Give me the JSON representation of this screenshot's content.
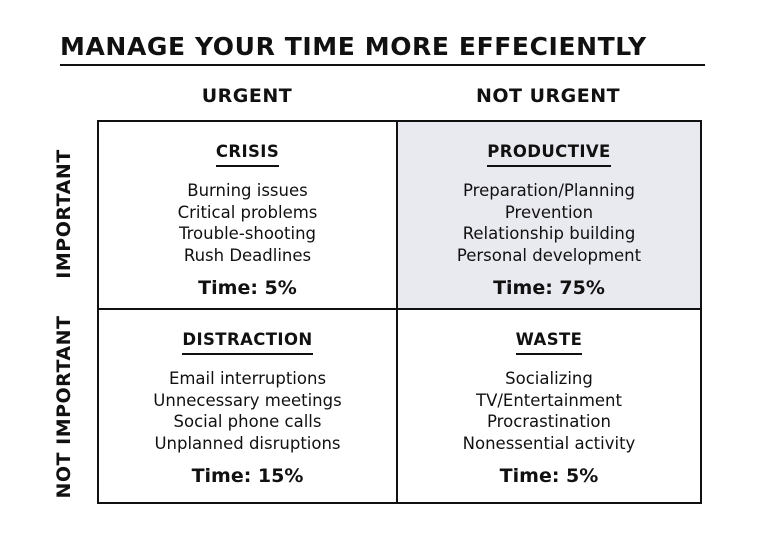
{
  "title": "MANAGE YOUR TIME MORE EFFECIENTLY",
  "columns": [
    "URGENT",
    "NOT URGENT"
  ],
  "rows": [
    "IMPORTANT",
    "NOT IMPORTANT"
  ],
  "quadrants": [
    {
      "title": "CRISIS",
      "items": [
        "Burning issues",
        "Critical problems",
        "Trouble-shooting",
        "Rush Deadlines"
      ],
      "time": "Time: 5%"
    },
    {
      "title": "PRODUCTIVE",
      "items": [
        "Preparation/Planning",
        "Prevention",
        "Relationship building",
        "Personal development"
      ],
      "time": "Time: 75%",
      "fill_color": "#e9e9f0"
    },
    {
      "title": "DISTRACTION",
      "items": [
        "Email interruptions",
        "Unnecessary meetings",
        "Social phone calls",
        "Unplanned disruptions"
      ],
      "time": "Time: 15%"
    },
    {
      "title": "WASTE",
      "items": [
        "Socializing",
        "TV/Entertainment",
        "Procrastination",
        "Nonessential activity"
      ],
      "time": "Time: 5%"
    }
  ]
}
